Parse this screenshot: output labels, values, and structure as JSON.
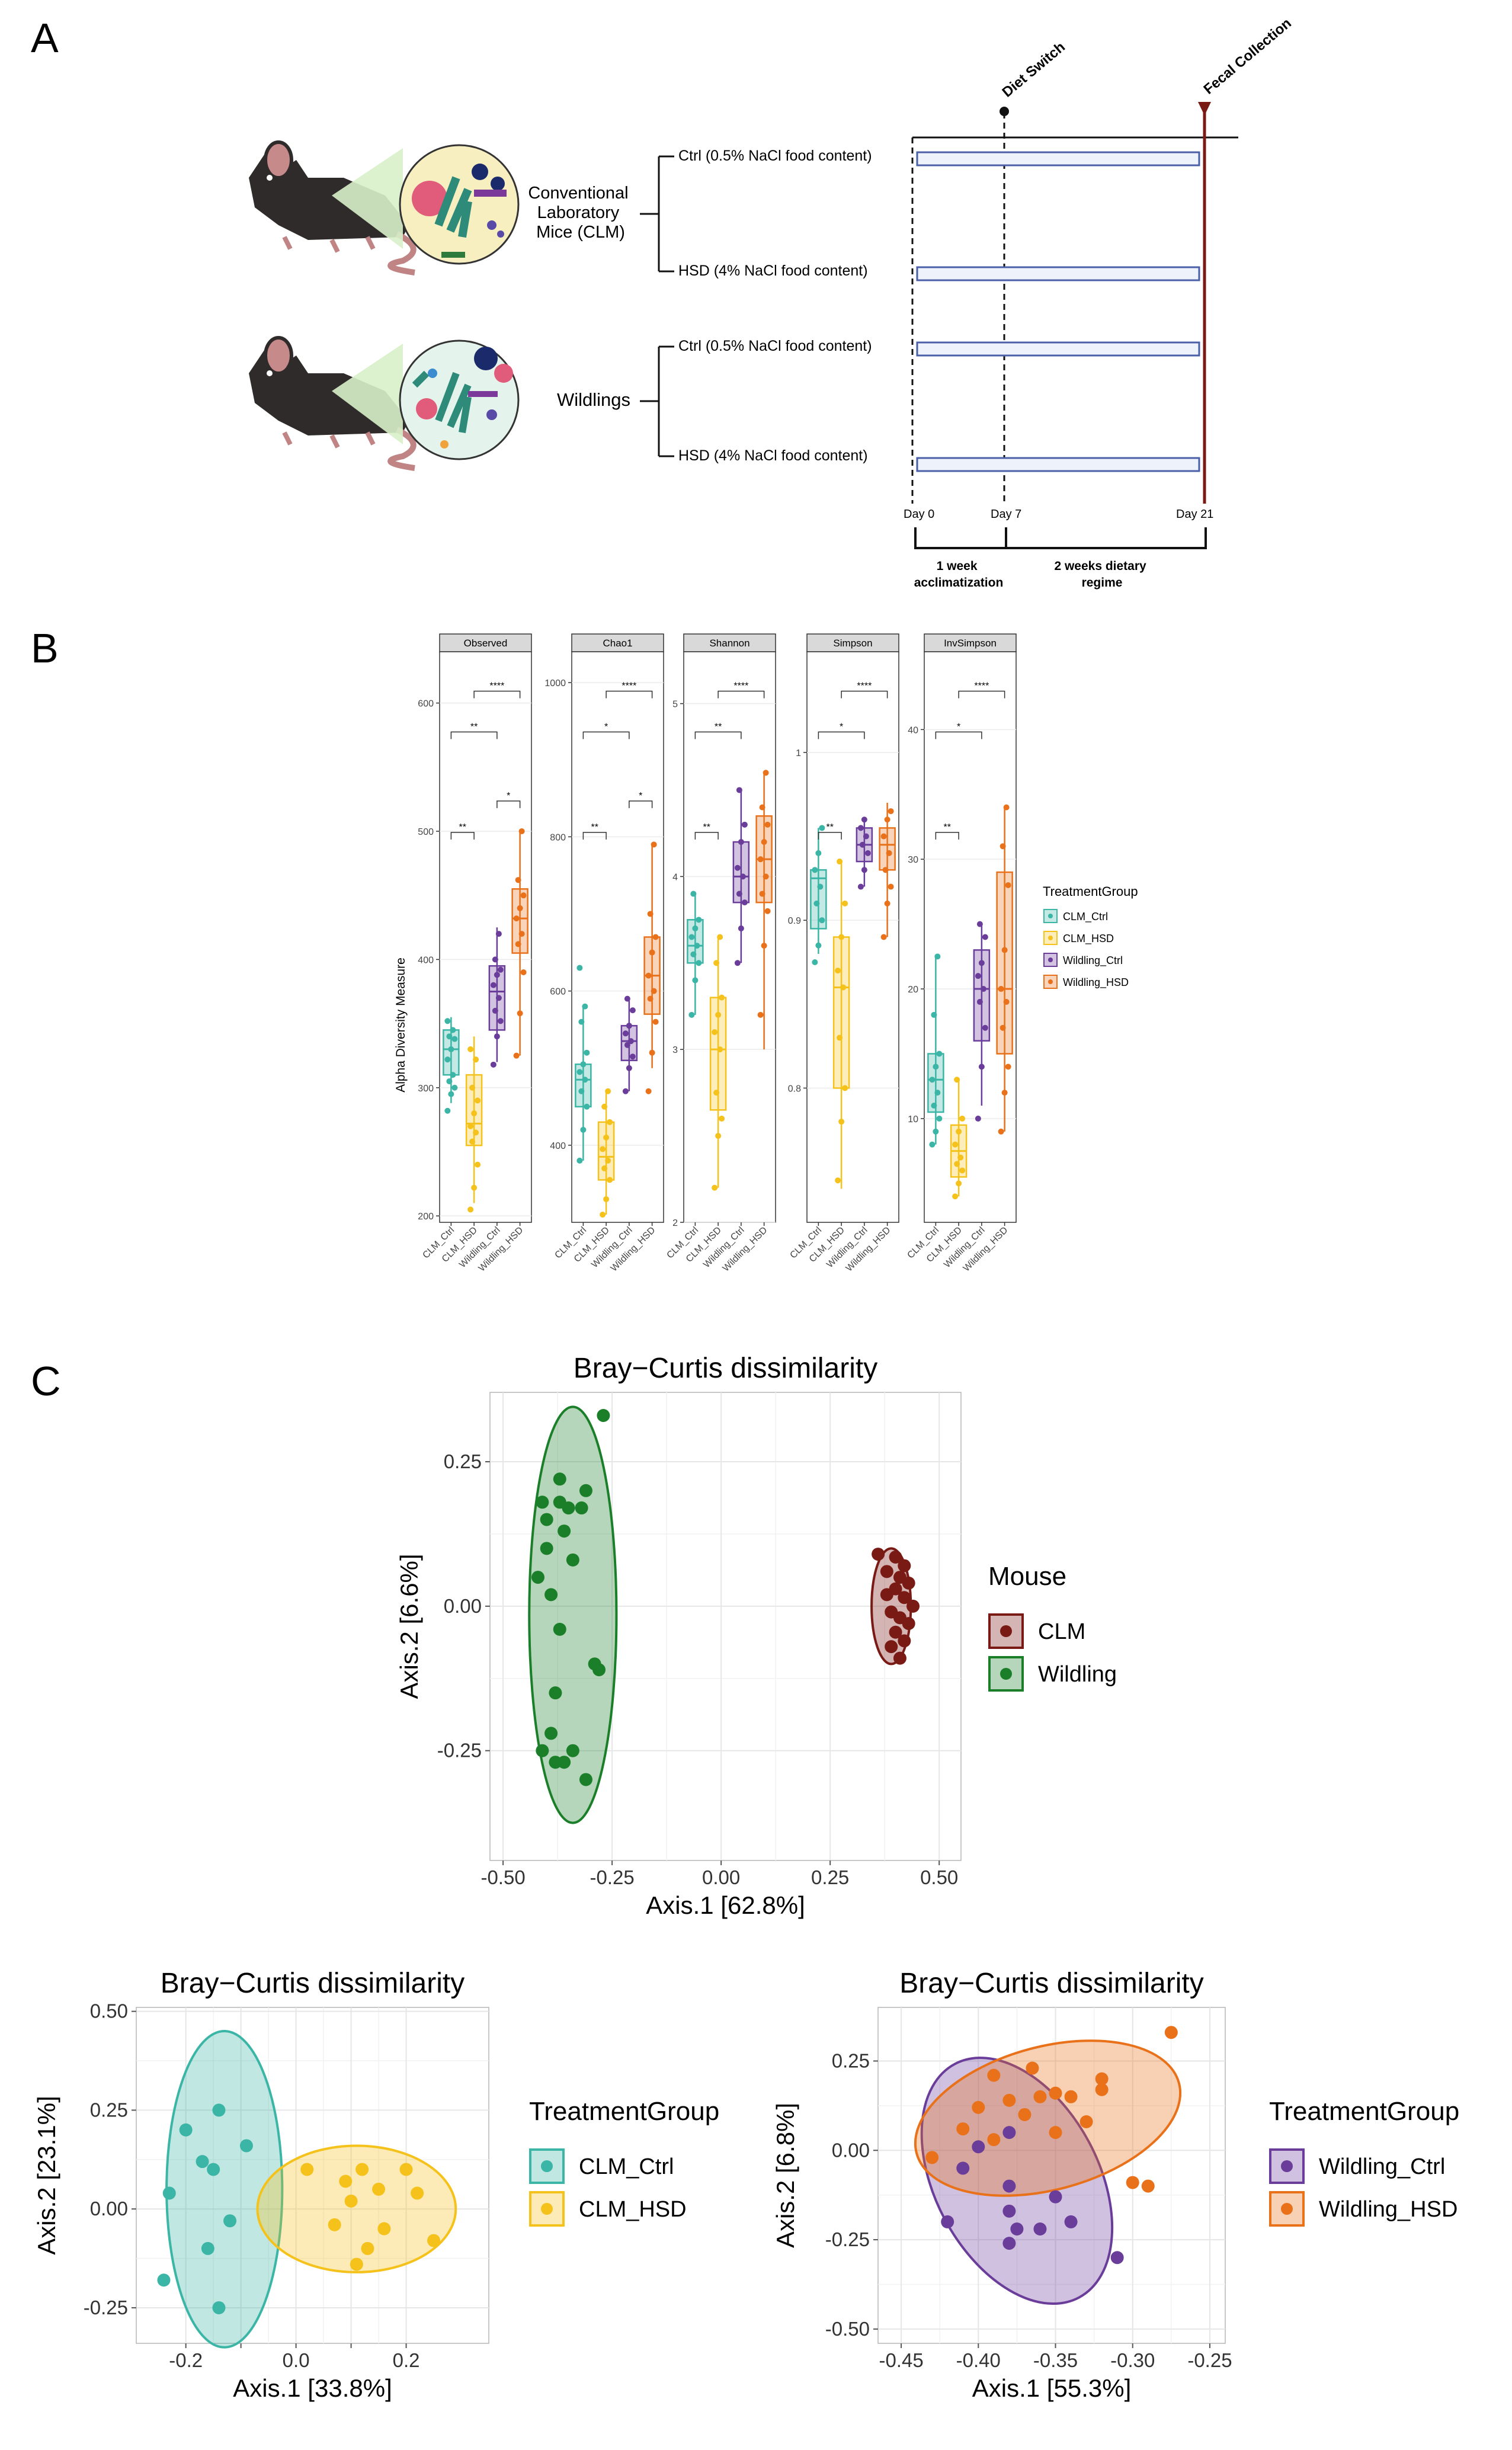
{
  "panel_labels": [
    "A",
    "B",
    "C"
  ],
  "panel_a": {
    "groups": [
      {
        "name": "Conventional\nLaboratory\nMice (CLM)",
        "name_lines": [
          "Conventional",
          "Laboratory",
          "Mice (CLM)"
        ],
        "arms": [
          "Ctrl (0.5% NaCl food content)",
          "HSD (4% NaCl food content)"
        ]
      },
      {
        "name": "Wildlings",
        "name_lines": [
          "Wildlings"
        ],
        "arms": [
          "Ctrl (0.5% NaCl food content)",
          "HSD (4% NaCl food content)"
        ]
      }
    ],
    "events": [
      "Diet Switch",
      "Fecal Collection"
    ],
    "days": [
      "Day 0",
      "Day 7",
      "Day 21"
    ],
    "phases": [
      {
        "lines": [
          "1 week",
          "acclimatization"
        ]
      },
      {
        "lines": [
          "2 weeks dietary",
          "regime"
        ]
      }
    ],
    "icons": [
      "mouse-icon",
      "microbiome-icon"
    ]
  },
  "panel_b": {
    "ylabel": "Alpha Diversity Measure",
    "categories": [
      "CLM_Ctrl",
      "CLM_HSD",
      "Wildling_Ctrl",
      "Wildling_HSD"
    ],
    "legend_title": "TreatmentGroup",
    "colors": [
      "#3ab5a6",
      "#f5c21b",
      "#6a3d9a",
      "#e8711a"
    ],
    "facets": [
      {
        "title": "Observed",
        "ylim": [
          195,
          640
        ],
        "ticks": [
          200,
          300,
          400,
          500,
          600
        ],
        "boxes": [
          [
            288,
            310,
            330,
            345,
            355
          ],
          [
            210,
            255,
            272,
            310,
            340
          ],
          [
            320,
            345,
            375,
            395,
            425
          ],
          [
            325,
            405,
            432,
            455,
            500
          ]
        ],
        "points": [
          [
            282,
            295,
            300,
            305,
            310,
            322,
            330,
            338,
            340,
            345,
            352
          ],
          [
            205,
            222,
            240,
            258,
            265,
            270,
            280,
            290,
            300,
            322,
            330
          ],
          [
            318,
            340,
            352,
            360,
            370,
            380,
            388,
            392,
            400,
            420
          ],
          [
            325,
            358,
            390,
            412,
            420,
            432,
            440,
            450,
            462,
            500
          ]
        ],
        "sig": [
          [
            "**",
            0,
            1
          ],
          [
            "*",
            2,
            3
          ],
          [
            "**",
            0,
            2
          ],
          [
            "****",
            1,
            3
          ]
        ]
      },
      {
        "title": "Chao1",
        "ylim": [
          300,
          1040
        ],
        "ticks": [
          400,
          600,
          800,
          1000
        ],
        "boxes": [
          [
            380,
            450,
            485,
            505,
            580
          ],
          [
            310,
            355,
            385,
            430,
            470
          ],
          [
            470,
            510,
            535,
            555,
            590
          ],
          [
            500,
            570,
            620,
            670,
            790
          ]
        ],
        "points": [
          [
            380,
            420,
            450,
            470,
            485,
            495,
            505,
            520,
            560,
            580,
            630
          ],
          [
            310,
            330,
            355,
            370,
            380,
            395,
            410,
            430,
            450,
            470
          ],
          [
            470,
            500,
            515,
            530,
            535,
            545,
            555,
            575,
            590
          ],
          [
            470,
            520,
            560,
            590,
            600,
            620,
            650,
            670,
            700,
            790
          ]
        ],
        "sig": [
          [
            "**",
            0,
            1
          ],
          [
            "*",
            2,
            3
          ],
          [
            "*",
            0,
            2
          ],
          [
            "****",
            1,
            3
          ]
        ]
      },
      {
        "title": "Shannon",
        "ylim": [
          2.0,
          5.3
        ],
        "ticks": [
          2,
          3,
          4,
          5
        ],
        "boxes": [
          [
            3.2,
            3.5,
            3.6,
            3.75,
            3.9
          ],
          [
            2.2,
            2.65,
            3.0,
            3.3,
            3.65
          ],
          [
            3.5,
            3.85,
            4.0,
            4.2,
            4.5
          ],
          [
            3.0,
            3.85,
            4.1,
            4.35,
            4.6
          ]
        ],
        "points": [
          [
            3.2,
            3.4,
            3.5,
            3.55,
            3.6,
            3.65,
            3.7,
            3.75,
            3.9
          ],
          [
            2.2,
            2.5,
            2.6,
            2.75,
            3.0,
            3.1,
            3.2,
            3.3,
            3.5,
            3.65
          ],
          [
            3.5,
            3.7,
            3.85,
            3.9,
            4.0,
            4.05,
            4.2,
            4.3,
            4.5
          ],
          [
            3.2,
            3.6,
            3.8,
            3.9,
            4.0,
            4.1,
            4.2,
            4.3,
            4.4,
            4.6
          ]
        ],
        "sig": [
          [
            "**",
            0,
            1
          ],
          [
            "**",
            0,
            2
          ],
          [
            "****",
            1,
            3
          ]
        ]
      },
      {
        "title": "Simpson",
        "ylim": [
          0.72,
          1.06
        ],
        "ticks": [
          0.8,
          0.9,
          1.0
        ],
        "boxes": [
          [
            0.88,
            0.895,
            0.925,
            0.93,
            0.955
          ],
          [
            0.74,
            0.8,
            0.86,
            0.89,
            0.935
          ],
          [
            0.92,
            0.935,
            0.945,
            0.955,
            0.96
          ],
          [
            0.89,
            0.93,
            0.945,
            0.955,
            0.97
          ]
        ],
        "points": [
          [
            0.875,
            0.885,
            0.9,
            0.91,
            0.92,
            0.93,
            0.94,
            0.955
          ],
          [
            0.745,
            0.78,
            0.8,
            0.83,
            0.86,
            0.87,
            0.89,
            0.91,
            0.935
          ],
          [
            0.92,
            0.93,
            0.94,
            0.945,
            0.95,
            0.955,
            0.96
          ],
          [
            0.89,
            0.91,
            0.92,
            0.93,
            0.94,
            0.95,
            0.96,
            0.965
          ]
        ],
        "sig": [
          [
            "**",
            0,
            1
          ],
          [
            "*",
            0,
            2
          ],
          [
            "****",
            1,
            3
          ]
        ]
      },
      {
        "title": "InvSimpson",
        "ylim": [
          2,
          46
        ],
        "ticks": [
          10,
          20,
          30,
          40
        ],
        "boxes": [
          [
            8,
            10.5,
            13,
            15,
            22.5
          ],
          [
            4,
            5.5,
            7.5,
            9.5,
            13
          ],
          [
            11,
            16,
            20,
            23,
            25
          ],
          [
            9,
            15,
            20,
            29,
            34
          ]
        ],
        "points": [
          [
            8,
            9,
            10,
            11,
            12,
            13,
            14,
            15,
            18,
            22.5
          ],
          [
            4,
            5,
            6,
            6.5,
            7,
            8,
            9,
            10,
            13
          ],
          [
            10,
            14,
            17,
            19,
            20,
            21,
            22,
            24,
            25
          ],
          [
            9,
            12,
            14,
            17,
            19,
            20,
            23,
            28,
            31,
            34
          ]
        ],
        "sig": [
          [
            "**",
            0,
            1
          ],
          [
            "*",
            0,
            2
          ],
          [
            "****",
            1,
            3
          ]
        ]
      }
    ]
  },
  "chart_data": [
    {
      "type": "scatter",
      "title": "Bray−Curtis dissimilarity",
      "xlabel": "Axis.1   [62.8%]",
      "ylabel": "Axis.2   [6.6%]",
      "xlim": [
        -0.53,
        0.55
      ],
      "ylim": [
        -0.44,
        0.37
      ],
      "xticks": [
        -0.5,
        -0.25,
        0.0,
        0.25,
        0.5
      ],
      "yticks": [
        -0.25,
        0.0,
        0.25
      ],
      "xtick_labels": [
        "-0.50",
        "-0.25",
        "0.00",
        "0.25",
        "0.50"
      ],
      "ytick_labels": [
        "-0.25",
        "0.00",
        "0.25"
      ],
      "legend_title": "Mouse",
      "series": [
        {
          "name": "CLM",
          "color": "#7a1a14",
          "ellipse": {
            "cx": 0.39,
            "cy": 0.0,
            "rx": 0.045,
            "ry": 0.1,
            "angle": 0
          },
          "points": [
            [
              0.36,
              0.09
            ],
            [
              0.4,
              0.085
            ],
            [
              0.42,
              0.07
            ],
            [
              0.38,
              0.06
            ],
            [
              0.41,
              0.05
            ],
            [
              0.43,
              0.04
            ],
            [
              0.4,
              0.03
            ],
            [
              0.38,
              0.02
            ],
            [
              0.42,
              0.015
            ],
            [
              0.44,
              0.0
            ],
            [
              0.39,
              -0.01
            ],
            [
              0.41,
              -0.02
            ],
            [
              0.43,
              -0.03
            ],
            [
              0.4,
              -0.045
            ],
            [
              0.42,
              -0.06
            ],
            [
              0.39,
              -0.07
            ],
            [
              0.41,
              -0.09
            ]
          ]
        },
        {
          "name": "Wildling",
          "color": "#1a7f28",
          "ellipse": {
            "cx": -0.34,
            "cy": -0.015,
            "rx": 0.1,
            "ry": 0.36,
            "angle": 0
          },
          "points": [
            [
              -0.27,
              0.33
            ],
            [
              -0.37,
              0.22
            ],
            [
              -0.31,
              0.2
            ],
            [
              -0.41,
              0.18
            ],
            [
              -0.37,
              0.18
            ],
            [
              -0.35,
              0.17
            ],
            [
              -0.32,
              0.17
            ],
            [
              -0.4,
              0.15
            ],
            [
              -0.36,
              0.13
            ],
            [
              -0.4,
              0.1
            ],
            [
              -0.34,
              0.08
            ],
            [
              -0.42,
              0.05
            ],
            [
              -0.39,
              0.02
            ],
            [
              -0.37,
              -0.04
            ],
            [
              -0.29,
              -0.1
            ],
            [
              -0.28,
              -0.11
            ],
            [
              -0.38,
              -0.15
            ],
            [
              -0.39,
              -0.22
            ],
            [
              -0.34,
              -0.25
            ],
            [
              -0.38,
              -0.27
            ],
            [
              -0.36,
              -0.27
            ],
            [
              -0.31,
              -0.3
            ],
            [
              -0.41,
              -0.25
            ]
          ]
        }
      ]
    },
    {
      "type": "scatter",
      "title": "Bray−Curtis dissimilarity",
      "xlabel": "Axis.1   [33.8%]",
      "ylabel": "Axis.2   [23.1%]",
      "xlim": [
        -0.29,
        0.35
      ],
      "ylim": [
        -0.34,
        0.51
      ],
      "xticks": [
        -0.2,
        -0.1,
        0.0,
        0.1,
        0.2
      ],
      "yticks": [
        -0.25,
        0.0,
        0.25,
        0.5
      ],
      "xtick_labels": [
        "-0.2",
        "",
        "0.0",
        "",
        "0.2"
      ],
      "ytick_labels": [
        "-0.25",
        "0.00",
        "0.25",
        "0.50"
      ],
      "legend_title": "TreatmentGroup",
      "series": [
        {
          "name": "CLM_Ctrl",
          "color": "#3ab5a6",
          "ellipse": {
            "cx": -0.13,
            "cy": 0.05,
            "rx": 0.105,
            "ry": 0.4,
            "angle": 0
          },
          "points": [
            [
              -0.14,
              0.25
            ],
            [
              -0.2,
              0.2
            ],
            [
              -0.09,
              0.16
            ],
            [
              -0.17,
              0.12
            ],
            [
              -0.15,
              0.1
            ],
            [
              -0.23,
              0.04
            ],
            [
              -0.12,
              -0.03
            ],
            [
              -0.16,
              -0.1
            ],
            [
              -0.24,
              -0.18
            ],
            [
              -0.14,
              -0.25
            ]
          ]
        },
        {
          "name": "CLM_HSD",
          "color": "#f5c21b",
          "ellipse": {
            "cx": 0.11,
            "cy": 0.0,
            "rx": 0.18,
            "ry": 0.16,
            "angle": 0
          },
          "points": [
            [
              0.02,
              0.1
            ],
            [
              0.12,
              0.1
            ],
            [
              0.2,
              0.1
            ],
            [
              0.09,
              0.07
            ],
            [
              0.15,
              0.05
            ],
            [
              0.22,
              0.04
            ],
            [
              0.1,
              0.02
            ],
            [
              0.07,
              -0.04
            ],
            [
              0.16,
              -0.05
            ],
            [
              0.25,
              -0.08
            ],
            [
              0.13,
              -0.1
            ],
            [
              0.11,
              -0.14
            ]
          ]
        }
      ]
    },
    {
      "type": "scatter",
      "title": "Bray−Curtis dissimilarity",
      "xlabel": "Axis.1   [55.3%]",
      "ylabel": "Axis.2   [6.8%]",
      "xlim": [
        -0.465,
        -0.24
      ],
      "ylim": [
        -0.54,
        0.4
      ],
      "xticks": [
        -0.45,
        -0.4,
        -0.35,
        -0.3,
        -0.25
      ],
      "yticks": [
        -0.5,
        -0.25,
        0.0,
        0.25
      ],
      "xtick_labels": [
        "-0.45",
        "-0.40",
        "-0.35",
        "-0.30",
        "-0.25"
      ],
      "ytick_labels": [
        "-0.50",
        "-0.25",
        "0.00",
        "0.25"
      ],
      "legend_title": "TreatmentGroup",
      "series": [
        {
          "name": "Wildling_Ctrl",
          "color": "#6a3d9a",
          "ellipse": {
            "cx": -0.375,
            "cy": -0.085,
            "rx": 0.053,
            "ry": 0.37,
            "angle": -28
          },
          "points": [
            [
              -0.38,
              0.05
            ],
            [
              -0.4,
              0.01
            ],
            [
              -0.41,
              -0.05
            ],
            [
              -0.38,
              -0.1
            ],
            [
              -0.35,
              -0.13
            ],
            [
              -0.38,
              -0.17
            ],
            [
              -0.42,
              -0.2
            ],
            [
              -0.375,
              -0.22
            ],
            [
              -0.36,
              -0.22
            ],
            [
              -0.34,
              -0.2
            ],
            [
              -0.31,
              -0.3
            ],
            [
              -0.38,
              -0.26
            ]
          ]
        },
        {
          "name": "Wildling_HSD",
          "color": "#e8711a",
          "ellipse": {
            "cx": -0.355,
            "cy": 0.09,
            "rx": 0.088,
            "ry": 0.2,
            "angle": -15
          },
          "points": [
            [
              -0.275,
              0.33
            ],
            [
              -0.365,
              0.23
            ],
            [
              -0.39,
              0.21
            ],
            [
              -0.32,
              0.2
            ],
            [
              -0.35,
              0.16
            ],
            [
              -0.34,
              0.15
            ],
            [
              -0.36,
              0.15
            ],
            [
              -0.32,
              0.17
            ],
            [
              -0.38,
              0.14
            ],
            [
              -0.4,
              0.12
            ],
            [
              -0.37,
              0.1
            ],
            [
              -0.33,
              0.08
            ],
            [
              -0.41,
              0.06
            ],
            [
              -0.35,
              0.05
            ],
            [
              -0.39,
              0.03
            ],
            [
              -0.3,
              -0.09
            ],
            [
              -0.29,
              -0.1
            ],
            [
              -0.43,
              -0.02
            ]
          ]
        }
      ]
    }
  ]
}
